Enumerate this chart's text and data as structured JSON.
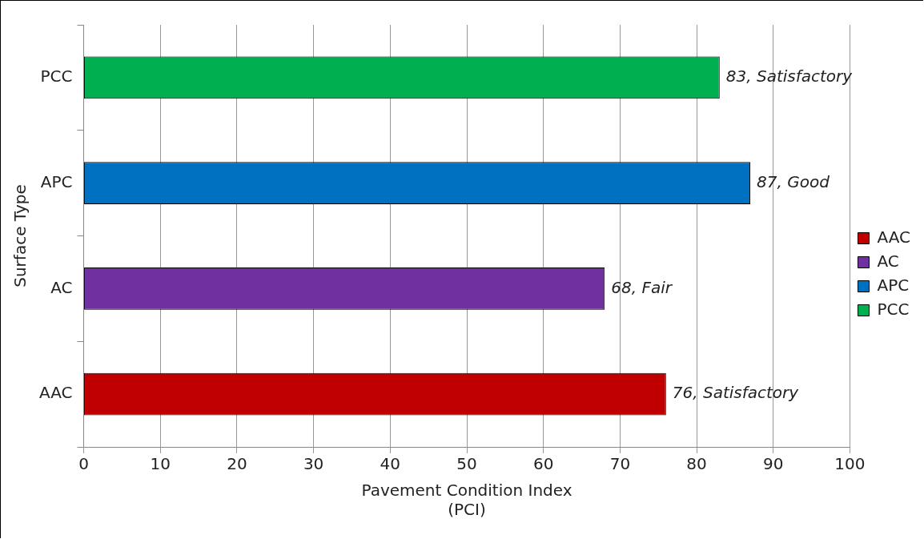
{
  "chart_data": {
    "type": "bar",
    "orientation": "horizontal",
    "xlabel": "Pavement Condition Index\n(PCI)",
    "ylabel": "Surface Type",
    "categories": [
      "PCC",
      "APC",
      "AC",
      "AAC"
    ],
    "series": [
      {
        "name": "AAC",
        "color": "#c00000",
        "values": [
          null,
          null,
          null,
          76
        ],
        "value_labels": [
          null,
          null,
          null,
          "76, Satisfactory"
        ]
      },
      {
        "name": "AC",
        "color": "#7030a0",
        "values": [
          null,
          null,
          68,
          null
        ],
        "value_labels": [
          null,
          null,
          "68, Fair",
          null
        ]
      },
      {
        "name": "APC",
        "color": "#0070c0",
        "values": [
          null,
          87,
          null,
          null
        ],
        "value_labels": [
          null,
          "87, Good",
          null,
          null
        ]
      },
      {
        "name": "PCC",
        "color": "#00b050",
        "values": [
          83,
          null,
          null,
          null
        ],
        "value_labels": [
          "83, Satisfactory",
          null,
          null,
          null
        ]
      }
    ],
    "xlim": [
      0,
      100
    ],
    "xticks": [
      0,
      10,
      20,
      30,
      40,
      50,
      60,
      70,
      80,
      90,
      100
    ],
    "grid": "x",
    "legend": "right"
  }
}
